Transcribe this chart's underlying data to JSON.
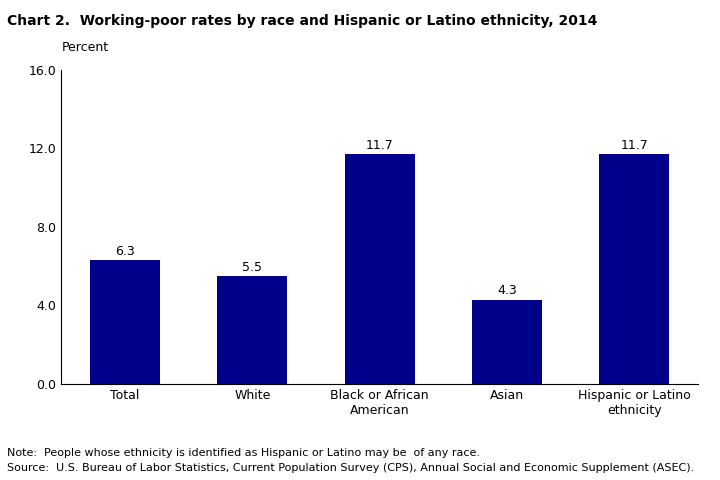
{
  "title": "Chart 2.  Working-poor rates by race and Hispanic or Latino ethnicity, 2014",
  "ylabel": "Percent",
  "categories": [
    "Total",
    "White",
    "Black or African\nAmerican",
    "Asian",
    "Hispanic or Latino\nethnicity"
  ],
  "values": [
    6.3,
    5.5,
    11.7,
    4.3,
    11.7
  ],
  "bar_color": "#00008B",
  "ylim": [
    0,
    16.0
  ],
  "yticks": [
    0.0,
    4.0,
    8.0,
    12.0,
    16.0
  ],
  "note_line1": "Note:  People whose ethnicity is identified as Hispanic or Latino may be  of any race.",
  "note_line2": "Source:  U.S. Bureau of Labor Statistics, Current Population Survey (CPS), Annual Social and Economic Supplement (ASEC).",
  "value_labels": [
    "6.3",
    "5.5",
    "11.7",
    "4.3",
    "11.7"
  ],
  "label_fontsize": 9,
  "title_fontsize": 10,
  "ylabel_fontsize": 9,
  "note_fontsize": 8,
  "tick_label_fontsize": 9,
  "bar_width": 0.55
}
